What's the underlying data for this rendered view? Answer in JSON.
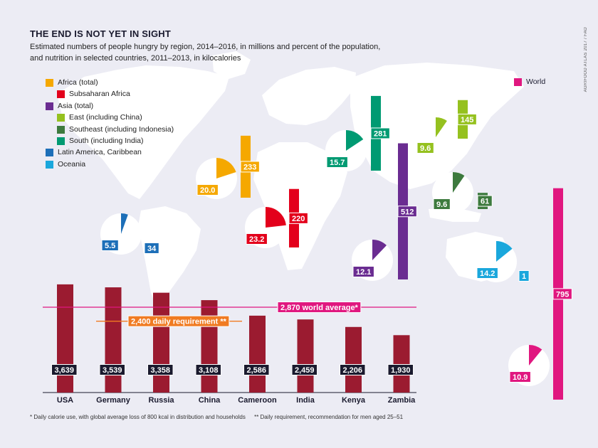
{
  "title": "THE END IS NOT YET IN SIGHT",
  "subtitle_line1": "Estimated numbers of people hungry by region, 2014–2016, in millions and percent of the population,",
  "subtitle_line2": "and nutrition in selected countries, 2011–2013, in kilocalories",
  "credit": "AGRIFOOD ATLAS 2017 / FAO",
  "footnote_1": "* Daily calorie use, with global average loss of 800 kcal in distribution and households",
  "footnote_2": "** Daily requirement, recommendation for men aged 25–51",
  "world_legend_label": "World",
  "chart_data": [
    {
      "type": "bar",
      "series": [
        {
          "name": "Africa (total)",
          "color": "#f5a800",
          "value": 233,
          "percent": 20.0,
          "indent": 0
        },
        {
          "name": "Subsaharan Africa",
          "color": "#e3001b",
          "value": 220,
          "percent": 23.2,
          "indent": 1
        },
        {
          "name": "Asia (total)",
          "color": "#6a2c91",
          "value": 512,
          "percent": 12.1,
          "indent": 0
        },
        {
          "name": "East (including China)",
          "color": "#95c11f",
          "value": 145,
          "percent": 9.6,
          "indent": 1
        },
        {
          "name": "Southeast (including Indonesia)",
          "color": "#3d7a3e",
          "value": 61,
          "percent": 9.6,
          "indent": 1
        },
        {
          "name": "South (including India)",
          "color": "#009a72",
          "value": 281,
          "percent": 15.7,
          "indent": 1
        },
        {
          "name": "Latin America, Caribbean",
          "color": "#1d6fb8",
          "value": 34,
          "percent": 5.5,
          "indent": 0
        },
        {
          "name": "Oceania",
          "color": "#1aa7dc",
          "value": 1,
          "percent": 14.2,
          "indent": 0
        },
        {
          "name": "World",
          "color": "#e0177f",
          "value": 795,
          "percent": 10.9,
          "indent": 0
        }
      ]
    },
    {
      "type": "bar",
      "categories": [
        "USA",
        "Germany",
        "Russia",
        "China",
        "Cameroon",
        "India",
        "Kenya",
        "Zambia"
      ],
      "values": [
        3639,
        3539,
        3358,
        3108,
        2586,
        2459,
        2206,
        1930
      ],
      "value_labels": [
        "3,639",
        "3,539",
        "3,358",
        "3,108",
        "2,586",
        "2,459",
        "2,206",
        "1,930"
      ],
      "bar_color": "#9b1b30",
      "world_average": {
        "value": 2870,
        "value_label": "2,870",
        "label": "world average*",
        "color": "#e0177f"
      },
      "daily_requirement": {
        "value": 2400,
        "value_label": "2,400",
        "label": "daily requirement",
        "marker": "**",
        "color": "#f07b22"
      }
    }
  ]
}
